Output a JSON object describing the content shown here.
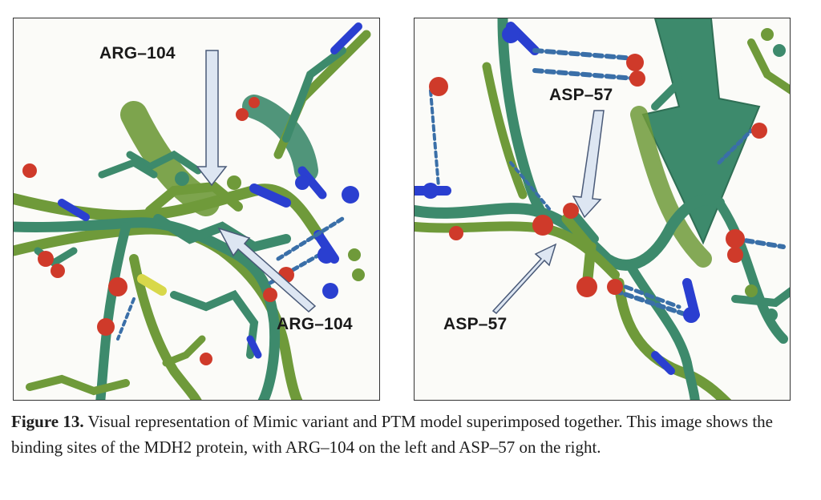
{
  "figure": {
    "left_panel": {
      "label_top": "ARG–104",
      "label_bottom": "ARG–104"
    },
    "right_panel": {
      "label_top": "ASP–57",
      "label_bottom": "ASP–57"
    },
    "caption": {
      "label": "Figure 13.",
      "text": " Visual representation of Mimic variant and PTM model superimposed together. This image shows the binding sites of the MDH2 protein, with ARG–104 on the left and ASP–57 on the right."
    }
  },
  "colors": {
    "olive": "#6f9a3a",
    "teal": "#3d8a6c",
    "oxygen": "#cf3a2a",
    "nitrogen": "#2a3fd0",
    "sulfur": "#d8d84a",
    "hbond": "#3a6fa8",
    "arrow_fill": "#dde6f2",
    "arrow_stroke": "#4a5a78"
  }
}
